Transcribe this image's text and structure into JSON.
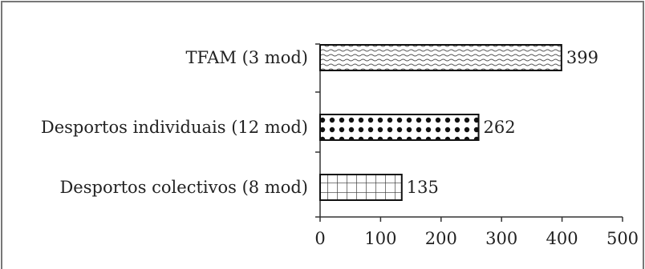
{
  "chart_data": {
    "type": "bar",
    "orientation": "horizontal",
    "categories": [
      "TFAM (3 mod)",
      "Desportos individuais (12 mod)",
      "Desportos colectivos (8 mod)"
    ],
    "values": [
      399,
      262,
      135
    ],
    "bar_patterns": [
      "horizontal-wavy-lines",
      "dots",
      "grid"
    ],
    "xlim": [
      0,
      500
    ],
    "xticks": [
      0,
      100,
      200,
      300,
      400,
      500
    ],
    "tick_labels": [
      "0",
      "100",
      "200",
      "300",
      "400",
      "500"
    ],
    "grid": false,
    "legend": "none"
  }
}
